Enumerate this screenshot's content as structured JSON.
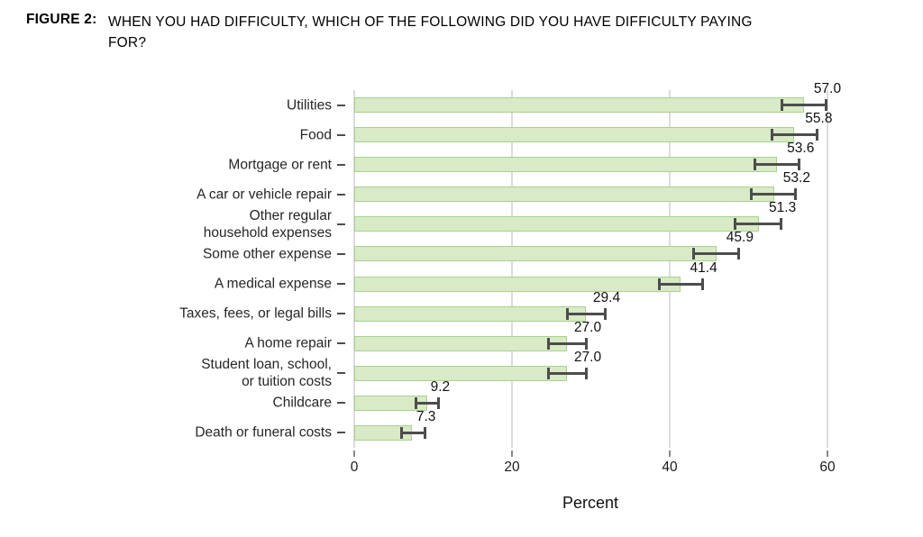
{
  "figure": {
    "label": "FIGURE 2:",
    "title": "WHEN YOU HAD DIFFICULTY, WHICH OF THE FOLLOWING DID YOU HAVE DIFFICULTY PAYING\nFOR?"
  },
  "chart_data": {
    "type": "bar",
    "orientation": "horizontal",
    "title": "",
    "xlabel": "Percent",
    "ylabel": "",
    "xlim": [
      0,
      60
    ],
    "xticks": [
      0,
      20,
      40,
      60
    ],
    "grid": true,
    "legend": "none",
    "categories": [
      "Utilities",
      "Food",
      "Mortgage or rent",
      "A car or vehicle repair",
      "Other regular\nhousehold expenses",
      "Some other expense",
      "A medical expense",
      "Taxes, fees, or legal bills",
      "A home repair",
      "Student loan, school,\nor tuition costs",
      "Childcare",
      "Death or funeral costs"
    ],
    "values": [
      57.0,
      55.8,
      53.6,
      53.2,
      51.3,
      45.9,
      41.4,
      29.4,
      27.0,
      27.0,
      9.2,
      7.3
    ],
    "value_labels": [
      "57.0",
      "55.8",
      "53.6",
      "53.2",
      "51.3",
      "45.9",
      "41.4",
      "29.4",
      "27.0",
      "27.0",
      "9.2",
      "7.3"
    ],
    "error_low": [
      54.0,
      52.8,
      50.6,
      50.2,
      48.1,
      42.8,
      38.5,
      26.8,
      24.5,
      24.5,
      7.7,
      5.8
    ],
    "error_high": [
      60.0,
      58.9,
      56.6,
      56.1,
      54.3,
      48.9,
      44.3,
      32.0,
      29.6,
      29.6,
      10.9,
      9.1
    ],
    "colors": {
      "bar_fill": "#d8eac6",
      "bar_border": "#a9d18e",
      "error_bar": "#4d4d4d",
      "gridline": "#dcdcdc",
      "text": "#1a1a1a"
    }
  }
}
